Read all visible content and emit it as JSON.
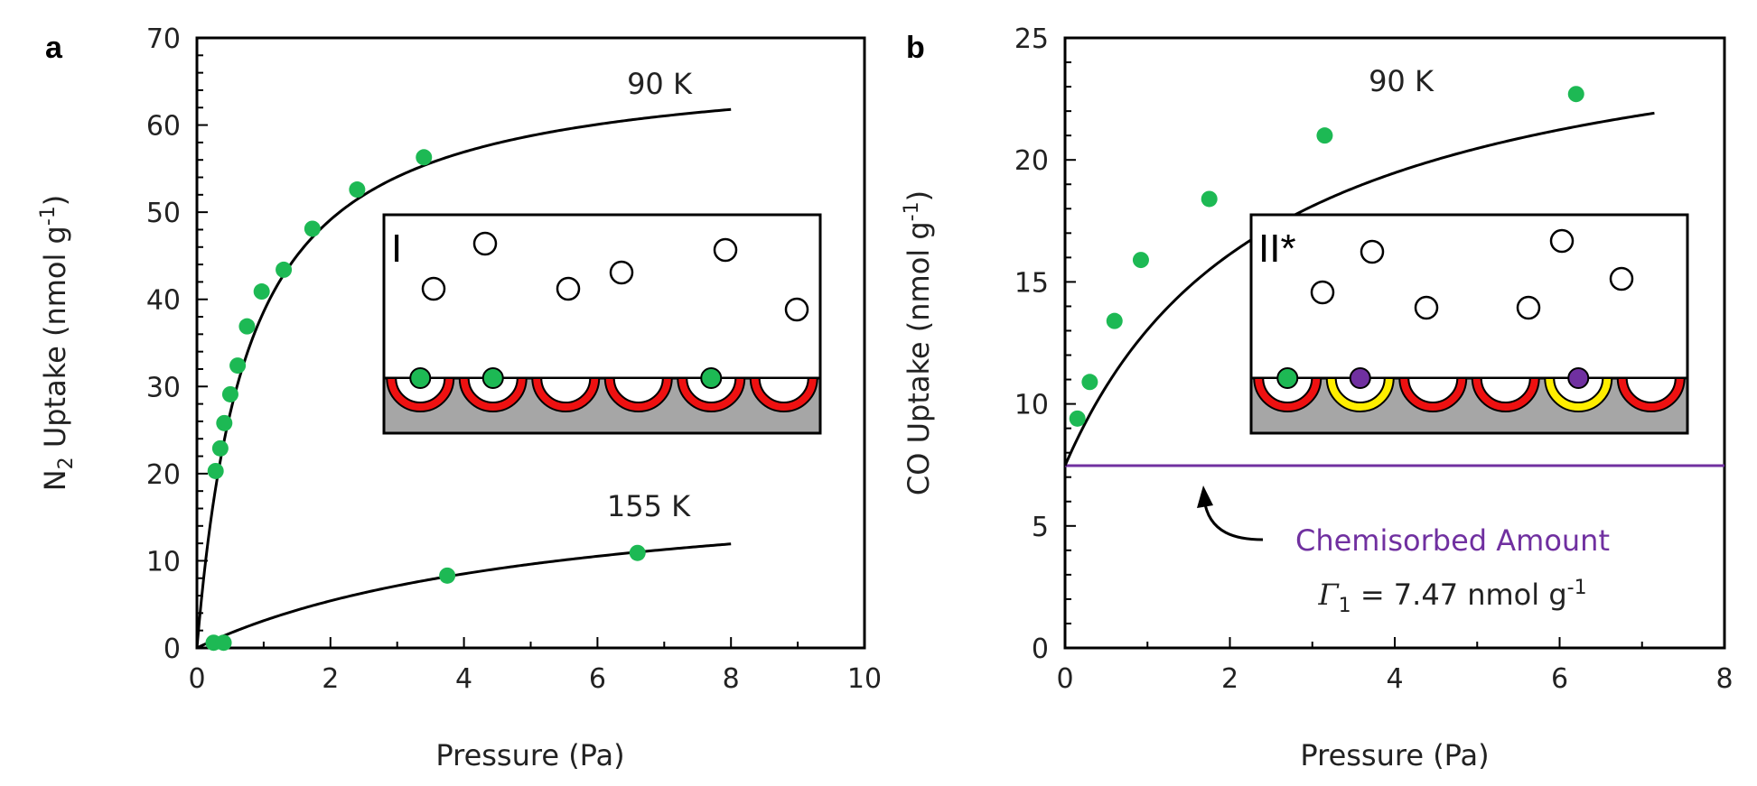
{
  "chart_data": [
    {
      "panel": "a",
      "type": "scatter",
      "xlabel": "Pressure (Pa)",
      "ylabel": {
        "pre": "N",
        "sub": "2",
        "mid": " Uptake (nmol g",
        "sup": "-1",
        "post": ")"
      },
      "xlim": [
        0,
        10
      ],
      "ylim": [
        0,
        70
      ],
      "xticks": [
        0,
        2,
        4,
        6,
        8,
        10
      ],
      "yticks": [
        0,
        10,
        20,
        30,
        40,
        50,
        60,
        70
      ],
      "grid": false,
      "marker_color": "#1db954",
      "series": [
        {
          "name": "90 K",
          "points": [
            [
              0.28,
              20.3
            ],
            [
              0.35,
              22.9
            ],
            [
              0.41,
              25.8
            ],
            [
              0.5,
              29.1
            ],
            [
              0.61,
              32.4
            ],
            [
              0.75,
              36.9
            ],
            [
              0.97,
              40.9
            ],
            [
              1.3,
              43.4
            ],
            [
              1.73,
              48.1
            ],
            [
              2.4,
              52.6
            ],
            [
              3.4,
              56.3
            ]
          ],
          "fit": {
            "model": "langmuir",
            "qmax": 67.6,
            "b": 1.33,
            "xmax": 8
          }
        },
        {
          "name": "155 K",
          "points": [
            [
              0.25,
              0.6
            ],
            [
              0.4,
              0.6
            ],
            [
              3.75,
              8.3
            ],
            [
              6.6,
              10.9
            ]
          ],
          "fit": {
            "model": "langmuir",
            "qmax": 20.0,
            "b": 0.185,
            "xmax": 8
          }
        }
      ],
      "inset": {
        "label": "I",
        "gas_molecules": 8,
        "sites": [
          "red",
          "red",
          "red",
          "red",
          "red",
          "red"
        ],
        "bound": [
          {
            "site": 0,
            "color": "#1db954"
          },
          {
            "site": 1,
            "color": "#1db954"
          },
          {
            "site": 4,
            "color": "#1db954"
          }
        ]
      }
    },
    {
      "panel": "b",
      "type": "scatter",
      "xlabel": "Pressure (Pa)",
      "ylabel": {
        "pre": "CO Uptake (nmol g",
        "sup": "-1",
        "post": ")"
      },
      "xlim": [
        0,
        8
      ],
      "ylim": [
        0,
        25
      ],
      "xticks": [
        0,
        2,
        4,
        6,
        8
      ],
      "yticks": [
        0,
        5,
        10,
        15,
        20,
        25
      ],
      "grid": false,
      "marker_color": "#1db954",
      "series": [
        {
          "name": "90 K",
          "points": [
            [
              0.15,
              9.4
            ],
            [
              0.3,
              10.9
            ],
            [
              0.6,
              13.4
            ],
            [
              0.92,
              15.9
            ],
            [
              1.75,
              18.4
            ],
            [
              3.15,
              21.0
            ],
            [
              6.2,
              22.7
            ]
          ],
          "fit": {
            "model": "langmuir_offset",
            "offset": 7.47,
            "qmax": 19.5,
            "b": 0.4,
            "xmax": 7.15
          }
        }
      ],
      "hline": {
        "y": 7.47,
        "color": "#7030a0"
      },
      "annotation": {
        "title": "Chemisorbed Amount",
        "sym": "Γ",
        "sub": "1",
        "rest": " = 7.47 nmol g",
        "sup": "-1"
      },
      "inset": {
        "label": "II*",
        "gas_molecules": 7,
        "sites": [
          "red",
          "yellow",
          "red",
          "red",
          "yellow",
          "red"
        ],
        "bound": [
          {
            "site": 0,
            "color": "#1db954"
          },
          {
            "site": 1,
            "color": "#7030a0"
          },
          {
            "site": 4,
            "color": "#7030a0"
          }
        ]
      }
    }
  ]
}
